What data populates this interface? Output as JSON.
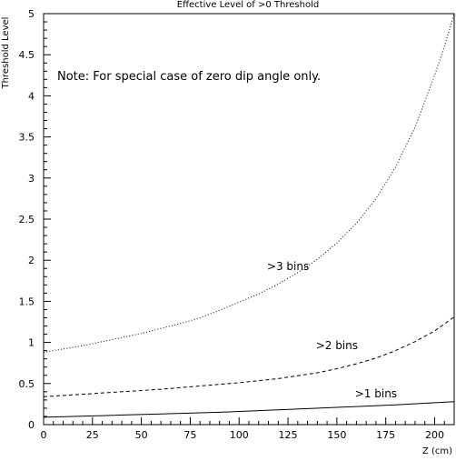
{
  "chart_data": {
    "type": "line",
    "title": "Effective Level of >0 Threshold",
    "xlabel": "Z (cm)",
    "ylabel": "Threshold Level",
    "note": "Note: For special case of zero dip angle only.",
    "xlim": [
      0,
      210
    ],
    "ylim": [
      0,
      5
    ],
    "x_ticks": [
      0,
      25,
      50,
      75,
      100,
      125,
      150,
      175,
      200
    ],
    "x_tick_labels": [
      "0",
      "25",
      "50",
      "75",
      "100",
      "125",
      "150",
      "175",
      "200"
    ],
    "y_ticks": [
      0,
      0.5,
      1,
      1.5,
      2,
      2.5,
      3,
      3.5,
      4,
      4.5,
      5
    ],
    "y_tick_labels": [
      "0",
      "0.5",
      "1",
      "1.5",
      "2",
      "2.5",
      "3",
      "3.5",
      "4",
      "4.5",
      "5"
    ],
    "grid": false,
    "legend": "none",
    "series": [
      {
        "name": ">3 bins",
        "line_style": "dotted",
        "x": [
          0,
          10,
          20,
          30,
          40,
          50,
          60,
          70,
          80,
          90,
          100,
          110,
          120,
          130,
          140,
          150,
          160,
          170,
          180,
          190,
          200,
          205,
          210
        ],
        "y": [
          0.88,
          0.92,
          0.96,
          1.01,
          1.06,
          1.11,
          1.17,
          1.23,
          1.3,
          1.39,
          1.49,
          1.59,
          1.71,
          1.85,
          2.01,
          2.21,
          2.45,
          2.75,
          3.13,
          3.62,
          4.25,
          4.6,
          5.0
        ],
        "label_at": [
          125,
          1.88
        ]
      },
      {
        "name": ">2 bins",
        "line_style": "dashed",
        "x": [
          0,
          20,
          40,
          60,
          80,
          100,
          120,
          140,
          150,
          160,
          170,
          180,
          190,
          200,
          210
        ],
        "y": [
          0.34,
          0.37,
          0.4,
          0.43,
          0.47,
          0.51,
          0.56,
          0.63,
          0.68,
          0.74,
          0.81,
          0.9,
          1.01,
          1.14,
          1.31
        ],
        "label_at": [
          150,
          0.92
        ]
      },
      {
        "name": ">1 bins",
        "line_style": "solid",
        "x": [
          0,
          30,
          60,
          90,
          120,
          150,
          180,
          210
        ],
        "y": [
          0.09,
          0.11,
          0.13,
          0.15,
          0.18,
          0.21,
          0.24,
          0.28
        ],
        "label_at": [
          170,
          0.33
        ]
      }
    ]
  }
}
